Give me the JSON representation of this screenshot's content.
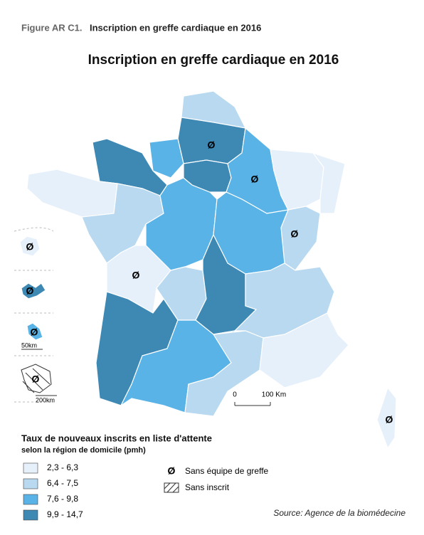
{
  "header": {
    "figure_label": "Figure AR C1.",
    "figure_text": "Inscription en greffe cardiaque en 2016"
  },
  "map": {
    "title": "Inscription en greffe cardiaque en 2016",
    "no_team_symbol": "Ø",
    "scale": {
      "start": "0",
      "end": "100 Km",
      "inset_small": "50km",
      "inset_large": "200km"
    }
  },
  "legend": {
    "title": "Taux de nouveaux inscrits en liste d'attente",
    "subtitle": "selon la région de domicile (pmh)",
    "classes": [
      {
        "label": "2,3 - 6,3",
        "color": "#e6f0fa"
      },
      {
        "label": "6,4 - 7,5",
        "color": "#b8d9f0"
      },
      {
        "label": "7,6 - 9,8",
        "color": "#5ab3e6"
      },
      {
        "label": "9,9 - 14,7",
        "color": "#3e88b4"
      }
    ],
    "symbols": {
      "no_team": "Sans équipe de greffe",
      "no_registered": "Sans inscrit"
    }
  },
  "footer": {
    "source": "Source: Agence de la biomédecine"
  }
}
